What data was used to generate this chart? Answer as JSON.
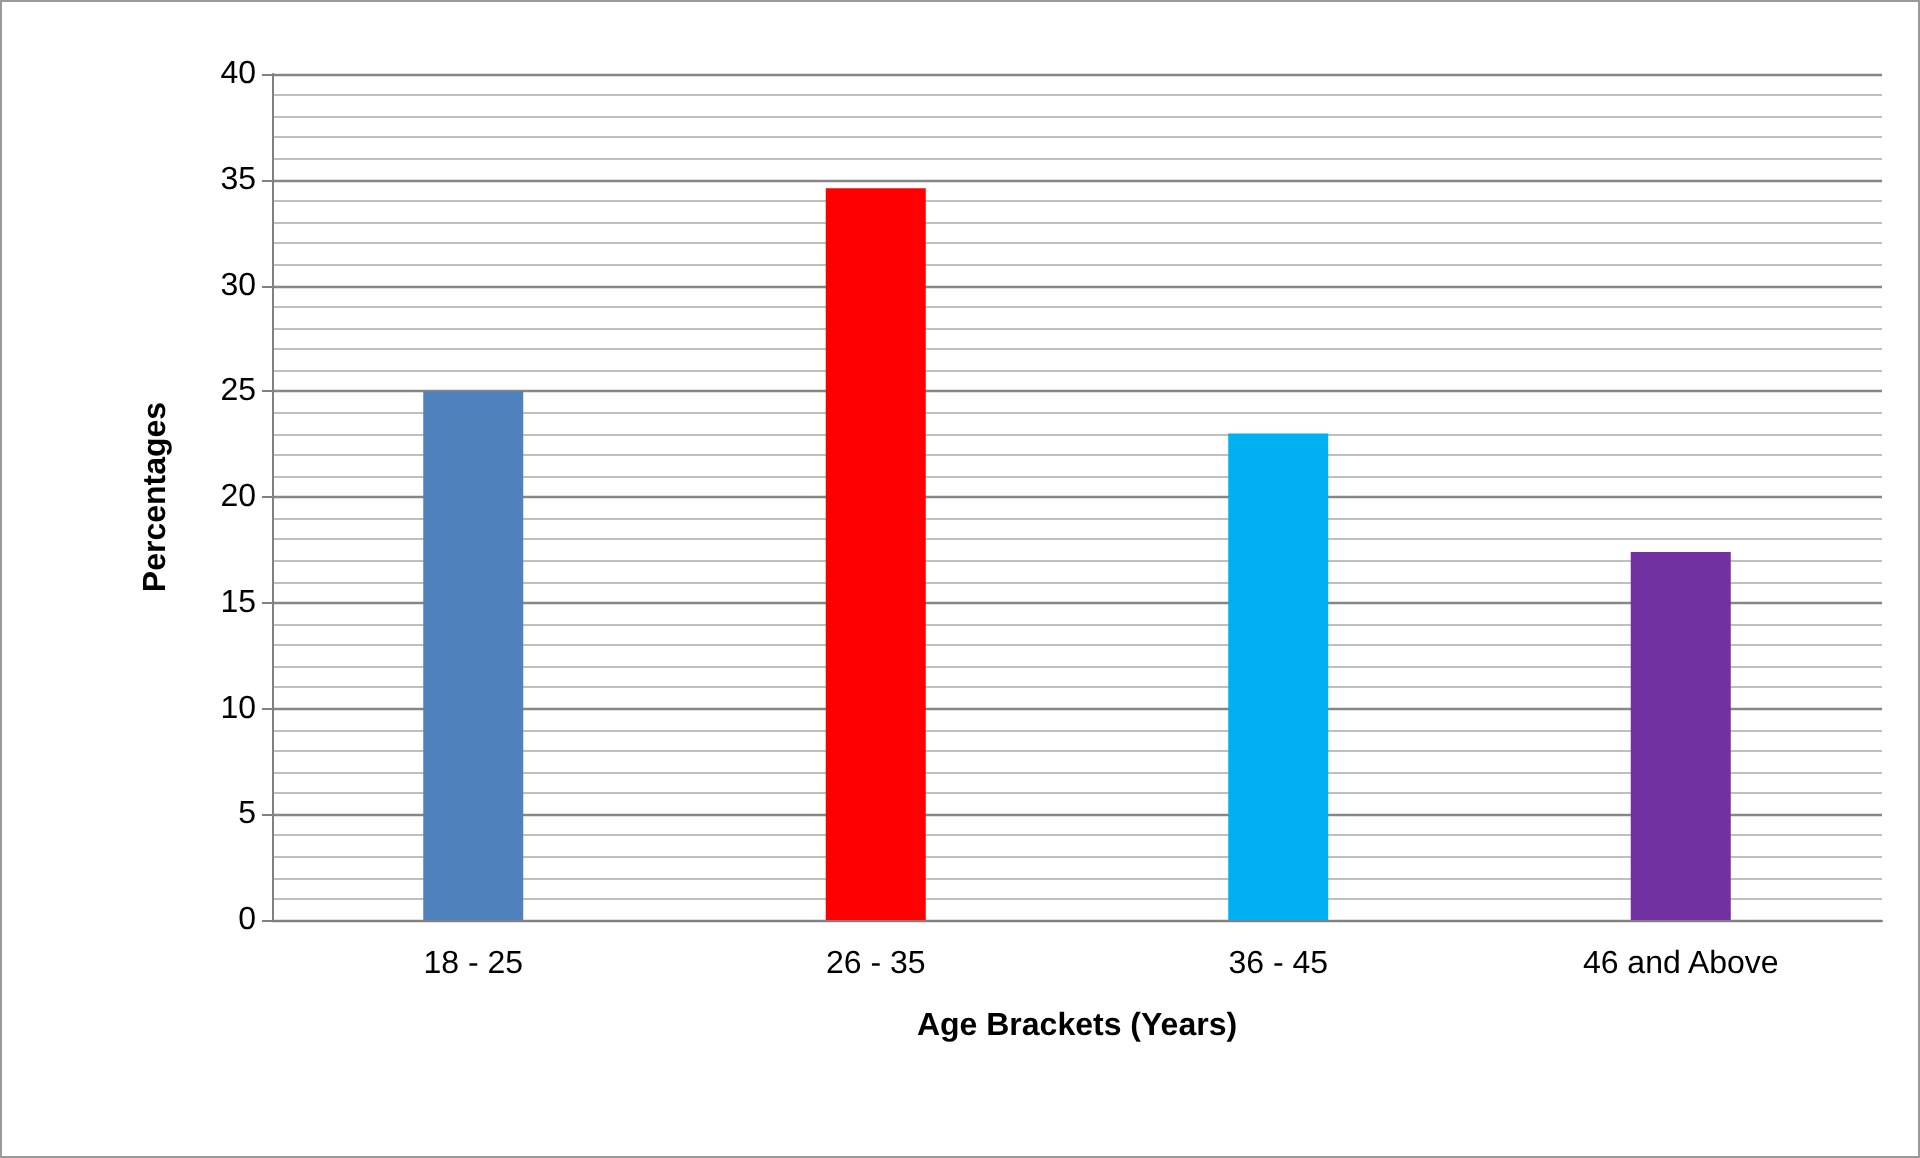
{
  "chart_data": {
    "type": "bar",
    "xlabel": "Age Brackets (Years)",
    "ylabel": "Percentages",
    "categories": [
      "18 - 25",
      "26 - 35",
      "36 - 45",
      "46 and Above"
    ],
    "values": [
      25,
      34.6,
      23.0,
      17.4
    ],
    "colors": [
      "#4f81bd",
      "#ff0000",
      "#00b0f0",
      "#7030a0"
    ],
    "ylim": [
      0,
      40
    ],
    "yticks": [
      0,
      5,
      10,
      15,
      20,
      25,
      30,
      35,
      40
    ],
    "grid": "y"
  }
}
